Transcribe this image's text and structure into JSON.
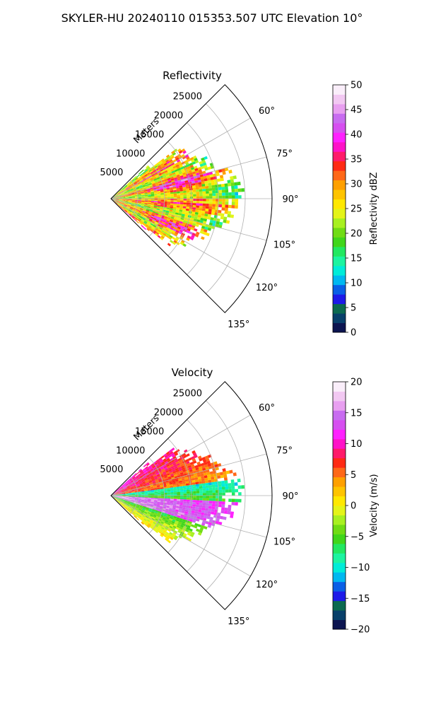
{
  "figure_title": "SKYLER-HU  20240110  015353.507 UTC Elevation 10°",
  "chart_data": [
    {
      "type": "radar-sector",
      "title": "Reflectivity",
      "range_label": "Meters",
      "range_ticks": [
        5000,
        10000,
        15000,
        20000,
        25000
      ],
      "rlim": [
        0,
        30000
      ],
      "azimuth_range": [
        45,
        135
      ],
      "azimuth_ticks": [
        "60°",
        "75°",
        "90°",
        "105°",
        "120°",
        "135°"
      ],
      "grid": true,
      "data_extent_m": 24000,
      "colorbar": {
        "label": "Reflectivity dBZ",
        "range": [
          0,
          50
        ],
        "ticks": [
          "0",
          "5",
          "10",
          "15",
          "20",
          "25",
          "30",
          "35",
          "40",
          "45",
          "50"
        ],
        "colors": [
          "#0c1550",
          "#08406a",
          "#0c6a50",
          "#1e1ae8",
          "#0a5fe6",
          "#00b8f0",
          "#00ecd8",
          "#1cf4a0",
          "#22e860",
          "#40d61a",
          "#70dc14",
          "#a8f020",
          "#e4f418",
          "#ffe800",
          "#ffc400",
          "#ffa000",
          "#ff6818",
          "#ff2a14",
          "#ff1a6a",
          "#ff12c8",
          "#ff20ff",
          "#d64ff0",
          "#c86cf0",
          "#e89ff0",
          "#f2c8f2",
          "#faeefa"
        ]
      }
    },
    {
      "type": "radar-sector",
      "title": "Velocity",
      "range_label": "Meters",
      "range_ticks": [
        5000,
        10000,
        15000,
        20000,
        25000
      ],
      "rlim": [
        0,
        30000
      ],
      "azimuth_range": [
        45,
        135
      ],
      "azimuth_ticks": [
        "60°",
        "75°",
        "90°",
        "105°",
        "120°",
        "135°"
      ],
      "grid": true,
      "data_extent_m": 24000,
      "colorbar": {
        "label": "Velocity (m/s)",
        "range": [
          -20,
          20
        ],
        "ticks": [
          "−20",
          "−15",
          "−10",
          "−5",
          "0",
          "5",
          "10",
          "15",
          "20"
        ],
        "colors": [
          "#0c1550",
          "#08406a",
          "#0c6a50",
          "#1e1ae8",
          "#0a5fe6",
          "#00b8f0",
          "#00ecd8",
          "#1cf4a0",
          "#22e860",
          "#40d61a",
          "#70dc14",
          "#a8f020",
          "#e4f418",
          "#ffe800",
          "#ffc400",
          "#ffa000",
          "#ff6818",
          "#ff2a14",
          "#ff1a6a",
          "#ff12c8",
          "#ff20ff",
          "#d64ff0",
          "#c86cf0",
          "#e89ff0",
          "#f2c8f2",
          "#faeefa"
        ]
      }
    }
  ]
}
